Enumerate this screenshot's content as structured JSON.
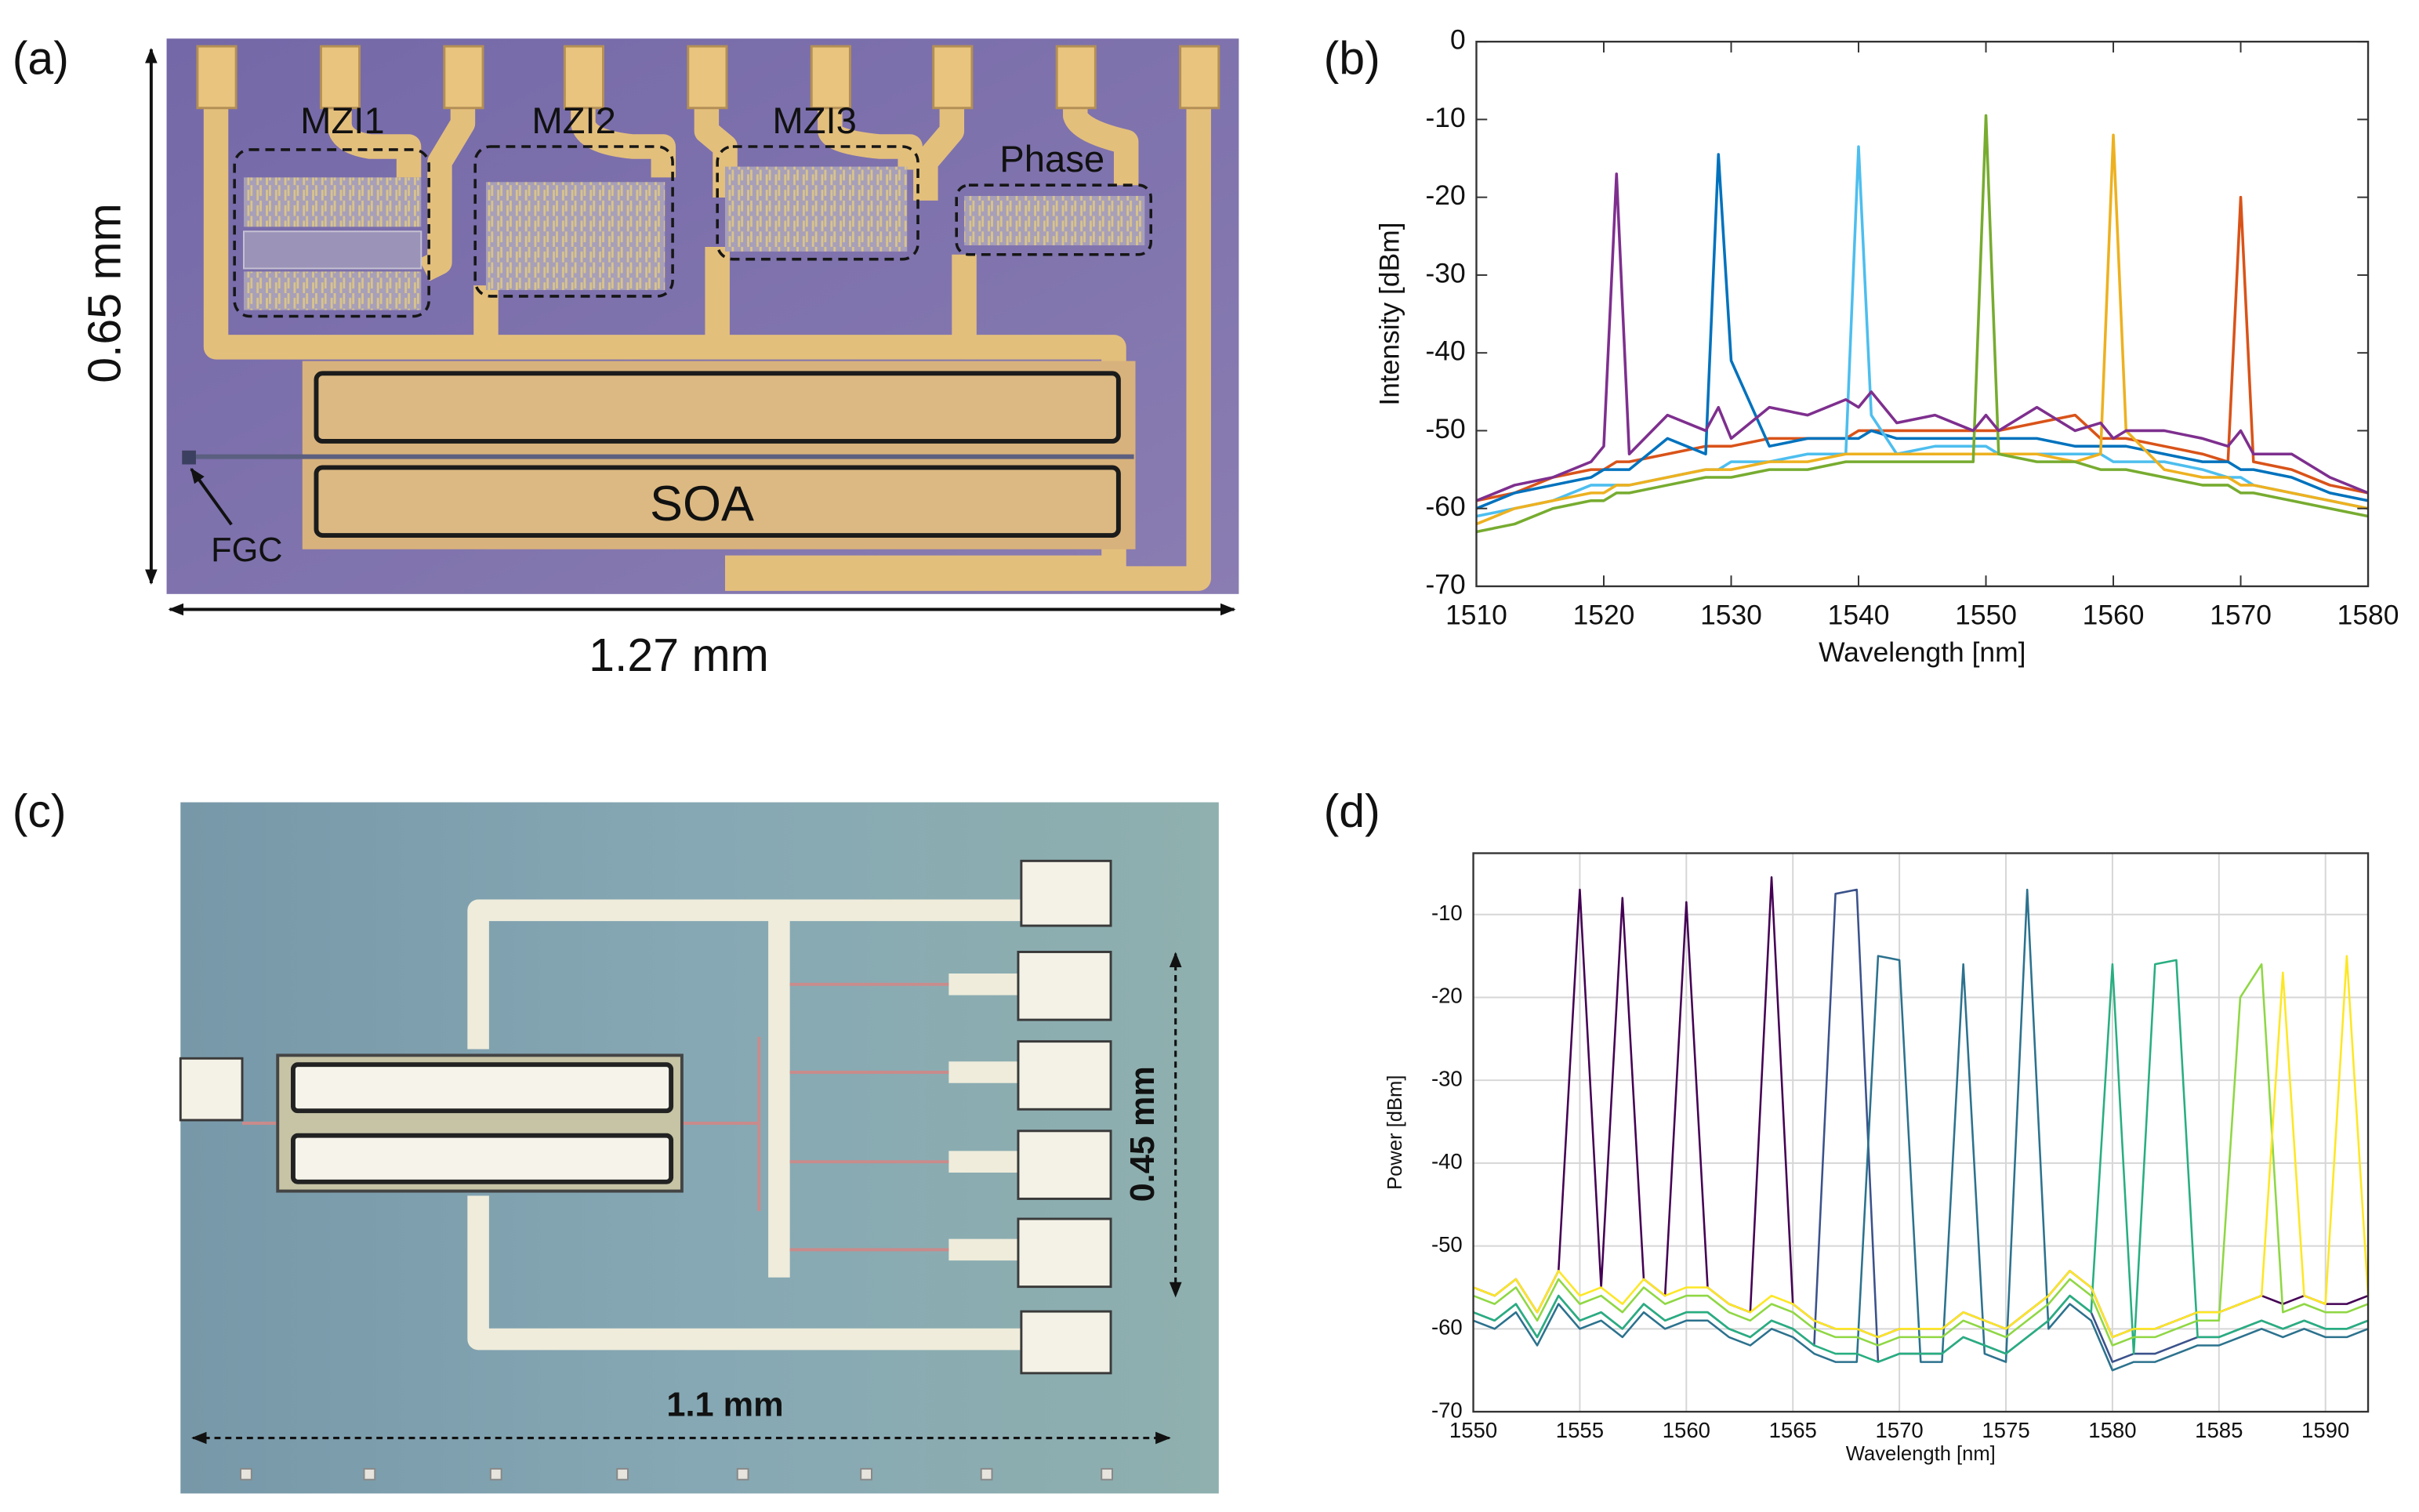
{
  "figure": {
    "panel_labels": [
      "(a)",
      "(b)",
      "(c)",
      "(d)"
    ],
    "panel_a": {
      "labels": [
        "MZI1",
        "MZI2",
        "MZI3",
        "Phase",
        "SOA",
        "FGC"
      ],
      "height": "0.65 mm",
      "width": "1.27 mm"
    },
    "panel_c": {
      "width": "1.1 mm",
      "height": "0.45 mm"
    }
  },
  "chart_data": [
    {
      "type": "line",
      "x_label": "Wavelength [nm]",
      "y_label": "Intensity [dBm]",
      "xlim": [
        1510,
        1580
      ],
      "ylim": [
        -70,
        0
      ],
      "xticks": [
        1510,
        1520,
        1530,
        1540,
        1550,
        1560,
        1570,
        1580
      ],
      "yticks": [
        -70,
        -60,
        -50,
        -40,
        -30,
        -20,
        -10,
        0
      ],
      "grid": false,
      "x": [
        1510,
        1513,
        1516,
        1519,
        1520,
        1521,
        1522,
        1525,
        1528,
        1529,
        1530,
        1533,
        1536,
        1539,
        1540,
        1541,
        1543,
        1546,
        1549,
        1550,
        1551,
        1554,
        1557,
        1559,
        1560,
        1561,
        1564,
        1567,
        1569,
        1570,
        1571,
        1574,
        1577,
        1580
      ],
      "series": [
        {
          "color": "#d95319",
          "values": [
            -59,
            -58,
            -56,
            -55,
            -55,
            -54,
            -54,
            -53,
            -52,
            -52,
            -52,
            -51,
            -51,
            -51,
            -50,
            -50,
            -50,
            -50,
            -50,
            -50,
            -50,
            -49,
            -48,
            -51,
            -51,
            -51,
            -52,
            -53,
            -54,
            -20,
            -54,
            -55,
            -57,
            -58
          ]
        },
        {
          "color": "#0072bd",
          "values": [
            -60,
            -58,
            -57,
            -56,
            -55,
            -55,
            -55,
            -51,
            -53,
            -14.5,
            -41,
            -52,
            -51,
            -51,
            -51,
            -50,
            -51,
            -51,
            -51,
            -51,
            -51,
            -51,
            -52,
            -52,
            -52,
            -52,
            -53,
            -54,
            -54,
            -55,
            -55,
            -56,
            -58,
            -59
          ]
        },
        {
          "color": "#4dbeee",
          "values": [
            -61,
            -60,
            -59,
            -57,
            -57,
            -57,
            -57,
            -56,
            -55,
            -55,
            -54,
            -54,
            -53,
            -53,
            -13.5,
            -48,
            -53,
            -52,
            -52,
            -52,
            -53,
            -53,
            -53,
            -53,
            -54,
            -54,
            -54,
            -55,
            -56,
            -56,
            -57,
            -58,
            -59,
            -60
          ]
        },
        {
          "color": "#edb120",
          "values": [
            -62,
            -60,
            -59,
            -58,
            -58,
            -57,
            -57,
            -56,
            -55,
            -55,
            -55,
            -54,
            -54,
            -53,
            -53,
            -53,
            -53,
            -53,
            -53,
            -53,
            -53,
            -53,
            -54,
            -53,
            -12,
            -50,
            -55,
            -56,
            -56,
            -57,
            -57,
            -58,
            -59,
            -60
          ]
        },
        {
          "color": "#77ac30",
          "values": [
            -63,
            -62,
            -60,
            -59,
            -59,
            -58,
            -58,
            -57,
            -56,
            -56,
            -56,
            -55,
            -55,
            -54,
            -54,
            -54,
            -54,
            -54,
            -54,
            -9.5,
            -53,
            -54,
            -54,
            -55,
            -55,
            -55,
            -56,
            -57,
            -57,
            -58,
            -58,
            -59,
            -60,
            -61
          ]
        },
        {
          "color": "#7e2f8e",
          "values": [
            -59,
            -57,
            -56,
            -54,
            -52,
            -17,
            -53,
            -48,
            -50,
            -47,
            -51,
            -47,
            -48,
            -46,
            -47,
            -45,
            -49,
            -48,
            -50,
            -48,
            -50,
            -47,
            -50,
            -49,
            -51,
            -50,
            -50,
            -51,
            -52,
            -50,
            -53,
            -53,
            -56,
            -58
          ]
        }
      ]
    },
    {
      "type": "line",
      "x_label": "Wavelength [nm]",
      "y_label": "Power [dBm]",
      "xlim": [
        1550,
        1592
      ],
      "ylim": [
        -70,
        -2.6
      ],
      "xticks": [
        1550,
        1555,
        1560,
        1565,
        1570,
        1575,
        1580,
        1585,
        1590
      ],
      "yticks": [
        -70,
        -60,
        -50,
        -40,
        -30,
        -20,
        -10
      ],
      "grid": true,
      "x": [
        1550,
        1551,
        1552,
        1553,
        1554,
        1555,
        1556,
        1557,
        1558,
        1559,
        1560,
        1561,
        1562,
        1563,
        1564,
        1565,
        1566,
        1567,
        1568,
        1569,
        1570,
        1571,
        1572,
        1573,
        1574,
        1575,
        1576,
        1577,
        1578,
        1579,
        1580,
        1581,
        1582,
        1583,
        1584,
        1585,
        1586,
        1587,
        1588,
        1589,
        1590,
        1591,
        1592
      ],
      "series": [
        {
          "color": "#440154",
          "values": [
            -55,
            -56,
            -54,
            -58,
            -53,
            -7,
            -55,
            -8,
            -54,
            -56,
            -8.5,
            -55,
            -57,
            -58,
            -5.5,
            -57,
            -59,
            -60,
            -60,
            -61,
            -60,
            -60,
            -60,
            -58,
            -59,
            -60,
            -58,
            -56,
            -53,
            -55,
            -61,
            -60,
            -60,
            -59,
            -58,
            -58,
            -57,
            -56,
            -57,
            -56,
            -57,
            -57,
            -56
          ]
        },
        {
          "color": "#3b528b",
          "values": [
            -58,
            -59,
            -57,
            -61,
            -56,
            -59,
            -58,
            -60,
            -57,
            -59,
            -58,
            -58,
            -60,
            -61,
            -59,
            -60,
            -62,
            -7.5,
            -7,
            -64,
            -63,
            -63,
            -63,
            -61,
            -62,
            -63,
            -61,
            -59,
            -56,
            -58,
            -64,
            -63,
            -63,
            -62,
            -61,
            -61,
            -60,
            -59,
            -60,
            -59,
            -60,
            -60,
            -59
          ]
        },
        {
          "color": "#2c728e",
          "values": [
            -59,
            -60,
            -58,
            -62,
            -57,
            -60,
            -59,
            -61,
            -58,
            -60,
            -59,
            -59,
            -61,
            -62,
            -60,
            -61,
            -63,
            -64,
            -64,
            -15,
            -15.5,
            -64,
            -64,
            -16,
            -63,
            -64,
            -7,
            -60,
            -57,
            -59,
            -65,
            -64,
            -64,
            -63,
            -62,
            -62,
            -61,
            -60,
            -61,
            -60,
            -61,
            -61,
            -60
          ]
        },
        {
          "color": "#28ae80",
          "values": [
            -58,
            -59,
            -57,
            -61,
            -56,
            -59,
            -58,
            -60,
            -57,
            -59,
            -58,
            -58,
            -60,
            -61,
            -59,
            -60,
            -62,
            -63,
            -63,
            -64,
            -63,
            -63,
            -63,
            -61,
            -62,
            -63,
            -61,
            -59,
            -56,
            -58,
            -16,
            -63,
            -16,
            -15.5,
            -61,
            -61,
            -60,
            -59,
            -60,
            -59,
            -60,
            -60,
            -59
          ]
        },
        {
          "color": "#8fd744",
          "values": [
            -56,
            -57,
            -55,
            -59,
            -54,
            -57,
            -56,
            -58,
            -55,
            -57,
            -56,
            -56,
            -58,
            -59,
            -57,
            -58,
            -60,
            -61,
            -61,
            -62,
            -61,
            -61,
            -61,
            -59,
            -60,
            -61,
            -59,
            -57,
            -54,
            -56,
            -62,
            -61,
            -61,
            -60,
            -59,
            -59,
            -20,
            -16,
            -58,
            -57,
            -58,
            -58,
            -57
          ]
        },
        {
          "color": "#fde725",
          "values": [
            -55,
            -56,
            -54,
            -58,
            -53,
            -56,
            -55,
            -57,
            -54,
            -56,
            -55,
            -55,
            -57,
            -58,
            -56,
            -57,
            -59,
            -60,
            -60,
            -61,
            -60,
            -60,
            -60,
            -58,
            -59,
            -60,
            -58,
            -56,
            -53,
            -55,
            -61,
            -60,
            -60,
            -59,
            -58,
            -58,
            -57,
            -56,
            -17,
            -56,
            -57,
            -15,
            -56
          ]
        }
      ]
    }
  ]
}
